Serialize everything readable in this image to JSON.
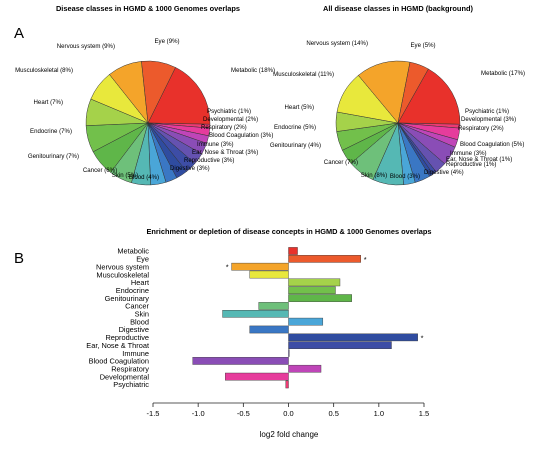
{
  "panels": {
    "a": "A",
    "b": "B"
  },
  "chart_data": [
    {
      "type": "pie",
      "title": "Disease classes in HGMD & 1000 Genomes overlaps",
      "slices": [
        {
          "label": "Metabolic (18%)",
          "value": 18,
          "color": "#e8312b"
        },
        {
          "label": "Psychiatric (1%)",
          "value": 1,
          "color": "#ee3a73"
        },
        {
          "label": "Developmental (2%)",
          "value": 2,
          "color": "#e63c9c"
        },
        {
          "label": "Respiratory (2%)",
          "value": 2,
          "color": "#bf45b8"
        },
        {
          "label": "Blood Coagulation (3%)",
          "value": 3,
          "color": "#8a4db6"
        },
        {
          "label": "Immune (3%)",
          "value": 3,
          "color": "#6552b0"
        },
        {
          "label": "Ear, Nose & Throat (3%)",
          "value": 3,
          "color": "#3d4da6"
        },
        {
          "label": "Reproductive (3%)",
          "value": 3,
          "color": "#2f4ca0"
        },
        {
          "label": "Digestive (3%)",
          "value": 3,
          "color": "#3a77c4"
        },
        {
          "label": "Blood (4%)",
          "value": 4,
          "color": "#4aa6d8"
        },
        {
          "label": "Skin (5%)",
          "value": 5,
          "color": "#55b8b4"
        },
        {
          "label": "Cancer (6%)",
          "value": 6,
          "color": "#6ec07a"
        },
        {
          "label": "Genitourinary (7%)",
          "value": 7,
          "color": "#5fb649"
        },
        {
          "label": "Endocrine (7%)",
          "value": 7,
          "color": "#72c04b"
        },
        {
          "label": "Heart (7%)",
          "value": 7,
          "color": "#a5d24a"
        },
        {
          "label": "Musculoskeletal (8%)",
          "value": 8,
          "color": "#e8e83c"
        },
        {
          "label": "Nervous system (9%)",
          "value": 9,
          "color": "#f4a42a"
        },
        {
          "label": "Eye (9%)",
          "value": 9,
          "color": "#ec5a2c"
        }
      ]
    },
    {
      "type": "pie",
      "title": "All disease classes in HGMD (background)",
      "slices": [
        {
          "label": "Metabolic (17%)",
          "value": 17,
          "color": "#e8312b"
        },
        {
          "label": "Psychiatric (1%)",
          "value": 1,
          "color": "#ee3a73"
        },
        {
          "label": "Developmental (3%)",
          "value": 3,
          "color": "#e63c9c"
        },
        {
          "label": "Respiratory (2%)",
          "value": 2,
          "color": "#bf45b8"
        },
        {
          "label": "Blood Coagulation (5%)",
          "value": 5,
          "color": "#8a4db6"
        },
        {
          "label": "Immune (3%)",
          "value": 3,
          "color": "#6552b0"
        },
        {
          "label": "Ear, Nose & Throat (1%)",
          "value": 1,
          "color": "#3d4da6"
        },
        {
          "label": "Reproductive (1%)",
          "value": 1,
          "color": "#2f4ca0"
        },
        {
          "label": "Digestive (4%)",
          "value": 4,
          "color": "#3a77c4"
        },
        {
          "label": "Blood (3%)",
          "value": 3,
          "color": "#4aa6d8"
        },
        {
          "label": "Skin (8%)",
          "value": 8,
          "color": "#55b8b4"
        },
        {
          "label": "Cancer (7%)",
          "value": 7,
          "color": "#6ec07a"
        },
        {
          "label": "Genitourinary (4%)",
          "value": 4,
          "color": "#5fb649"
        },
        {
          "label": "Endocrine (5%)",
          "value": 5,
          "color": "#72c04b"
        },
        {
          "label": "Heart (5%)",
          "value": 5,
          "color": "#a5d24a"
        },
        {
          "label": "Musculoskeletal (11%)",
          "value": 11,
          "color": "#e8e83c"
        },
        {
          "label": "Nervous system (14%)",
          "value": 14,
          "color": "#f4a42a"
        },
        {
          "label": "Eye (5%)",
          "value": 5,
          "color": "#ec5a2c"
        }
      ]
    },
    {
      "type": "bar",
      "orientation": "horizontal",
      "title": "Enrichment or depletion of disease concepts in HGMD & 1000 Genomes overlaps",
      "xlabel": "log2 fold change",
      "xlim": [
        -1.5,
        1.5
      ],
      "xticks": [
        "-1.5",
        "-1.0",
        "-0.5",
        "0.0",
        "0.5",
        "1.0",
        "1.5"
      ],
      "bars": [
        {
          "label": "Metabolic",
          "value": 0.1,
          "color": "#e8312b",
          "star": ""
        },
        {
          "label": "Eye",
          "value": 0.8,
          "color": "#ec5a2c",
          "star": "*"
        },
        {
          "label": "Nervous system",
          "value": -0.63,
          "color": "#f4a42a",
          "star": "*"
        },
        {
          "label": "Musculoskeletal",
          "value": -0.43,
          "color": "#e8e83c",
          "star": ""
        },
        {
          "label": "Heart",
          "value": 0.57,
          "color": "#a5d24a",
          "star": ""
        },
        {
          "label": "Endocrine",
          "value": 0.52,
          "color": "#72c04b",
          "star": ""
        },
        {
          "label": "Genitourinary",
          "value": 0.7,
          "color": "#5fb649",
          "star": ""
        },
        {
          "label": "Cancer",
          "value": -0.33,
          "color": "#6ec07a",
          "star": ""
        },
        {
          "label": "Skin",
          "value": -0.73,
          "color": "#55b8b4",
          "star": ""
        },
        {
          "label": "Blood",
          "value": 0.38,
          "color": "#4aa6d8",
          "star": ""
        },
        {
          "label": "Digestive",
          "value": -0.43,
          "color": "#3a77c4",
          "star": ""
        },
        {
          "label": "Reproductive",
          "value": 1.43,
          "color": "#2f4ca0",
          "star": "*"
        },
        {
          "label": "Ear, Nose & Throat",
          "value": 1.14,
          "color": "#3d4da6",
          "star": ""
        },
        {
          "label": "Immune",
          "value": 0.0,
          "color": "#6552b0",
          "star": ""
        },
        {
          "label": "Blood Coagulation",
          "value": -1.06,
          "color": "#8a4db6",
          "star": ""
        },
        {
          "label": "Respiratory",
          "value": 0.36,
          "color": "#bf45b8",
          "star": ""
        },
        {
          "label": "Developmental",
          "value": -0.7,
          "color": "#e63c9c",
          "star": ""
        },
        {
          "label": "Psychiatric",
          "value": -0.03,
          "color": "#ee3a73",
          "star": ""
        }
      ]
    }
  ]
}
